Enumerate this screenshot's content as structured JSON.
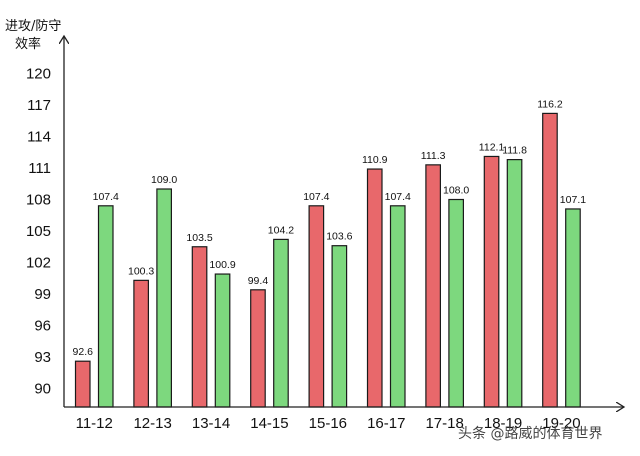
{
  "chart_data": {
    "type": "bar",
    "title": "",
    "xlabel": "",
    "ylabel_lines": [
      "进攻/防守",
      "效率"
    ],
    "ylim": [
      88,
      123
    ],
    "yticks": [
      "90",
      "93",
      "96",
      "99",
      "102",
      "105",
      "108",
      "111",
      "114",
      "117",
      "120"
    ],
    "categories": [
      "11-12",
      "12-13",
      "13-14",
      "14-15",
      "15-16",
      "16-17",
      "17-18",
      "18-19",
      "19-20"
    ],
    "series": [
      {
        "color": "#e8686b",
        "values": [
          92.6,
          100.3,
          103.5,
          99.4,
          107.4,
          110.9,
          111.3,
          112.1,
          116.2
        ],
        "labels": [
          "92.6",
          "100.3",
          "103.5",
          "99.4",
          "107.4",
          "110.9",
          "111.3",
          "112.1",
          "116.2"
        ]
      },
      {
        "color": "#7dd87e",
        "values": [
          107.4,
          109.0,
          100.9,
          104.2,
          103.6,
          107.4,
          108.0,
          111.8,
          107.1
        ],
        "labels": [
          "107.4",
          "109.0",
          "100.9",
          "104.2",
          "103.6",
          "107.4",
          "108.0",
          "111.8",
          "107.1"
        ]
      }
    ],
    "grid": false,
    "legend": "none"
  },
  "watermark": "头条 @路威的体育世界"
}
